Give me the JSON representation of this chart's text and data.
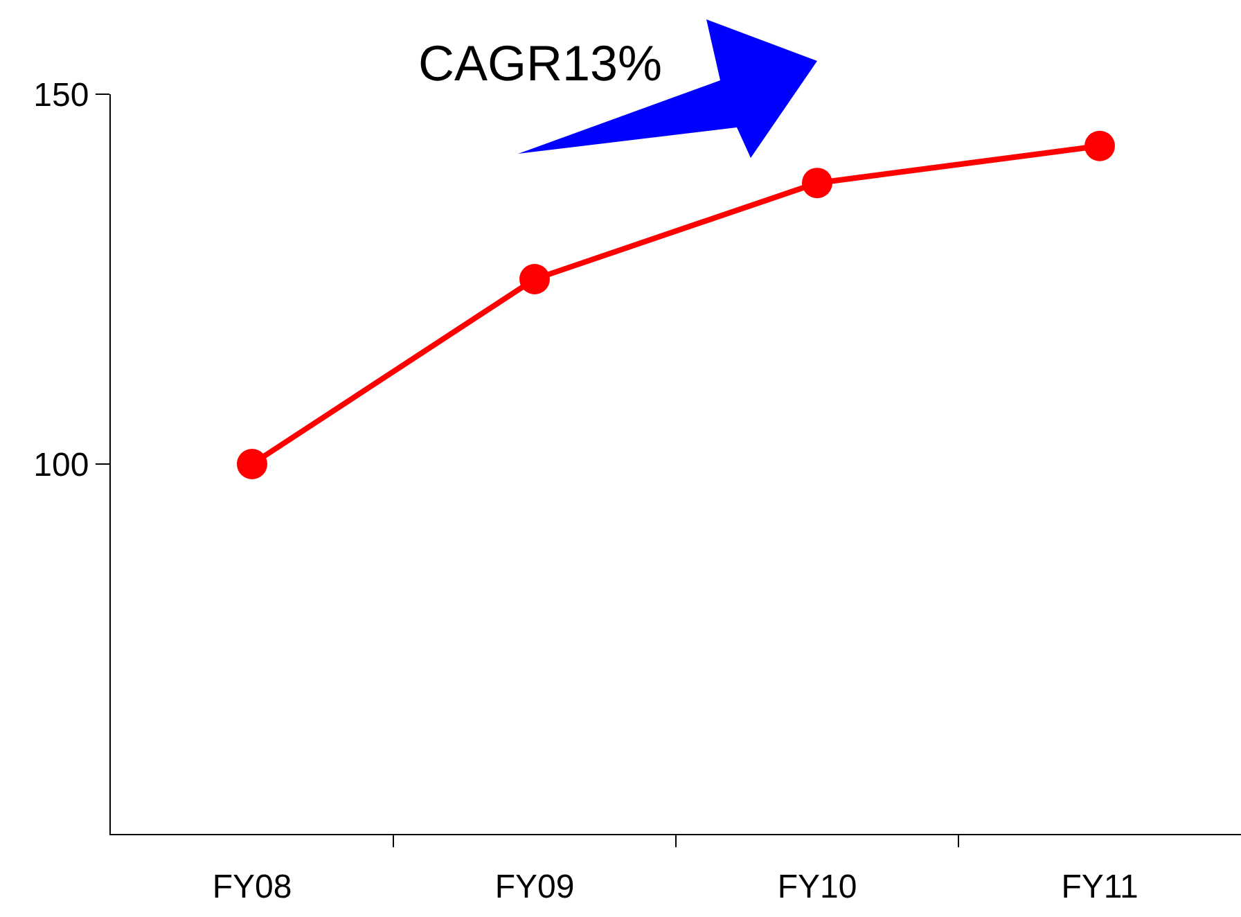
{
  "chart_data": {
    "type": "line",
    "categories": [
      "FY08",
      "FY09",
      "FY10",
      "FY11"
    ],
    "series": [
      {
        "color": "#ff0000",
        "values": [
          100,
          125,
          138,
          143
        ]
      }
    ],
    "ylim": [
      50,
      150
    ],
    "yticks": [
      100,
      150
    ],
    "grid": false,
    "marker": "circle",
    "line_style": "solid",
    "annotations": [
      "CAGR13%"
    ]
  }
}
